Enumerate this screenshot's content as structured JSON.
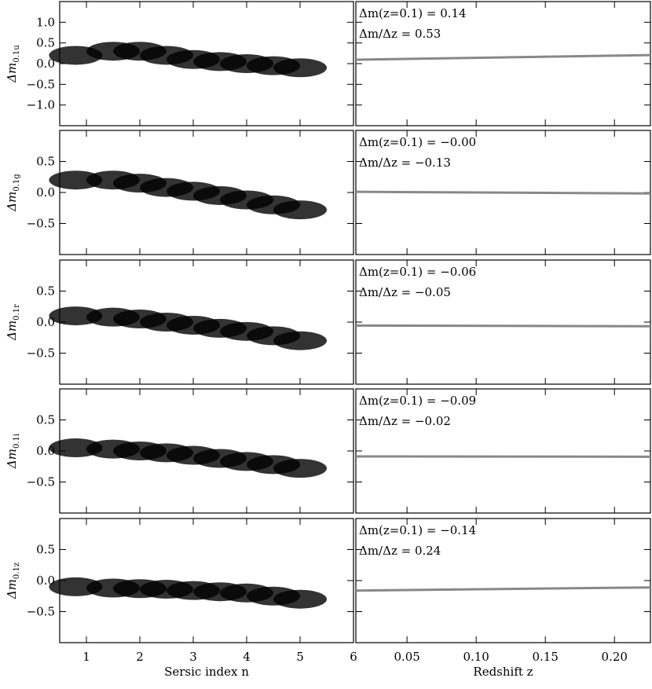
{
  "chart_data": [
    {
      "type": "scatter",
      "ylabel": "Δm",
      "ylabel_sub": "0.1u",
      "xlim": [
        0.5,
        6
      ],
      "xticks": [
        1,
        2,
        3,
        4,
        5,
        6
      ],
      "ylim": [
        -1.5,
        1.5
      ],
      "yticks": [
        {
          "value": -1,
          "label": "−1.0"
        },
        {
          "value": -0.5,
          "label": "−0.5"
        },
        {
          "value": 0,
          "label": "0.0"
        },
        {
          "value": 0.5,
          "label": "0.5"
        },
        {
          "value": 1,
          "label": "1.0"
        }
      ],
      "series": [
        {
          "color": "#000000",
          "x": [
            0.8,
            1.5,
            2,
            2.5,
            3,
            3.5,
            4,
            4.5,
            5
          ],
          "values": [
            0.2,
            0.3,
            0.3,
            0.2,
            0.1,
            0.05,
            0.0,
            -0.05,
            -0.1
          ]
        }
      ]
    },
    {
      "type": "line",
      "annotations": [
        "Δm(z=0.1) = 0.14",
        "Δm/Δz = 0.53"
      ],
      "xlim": [
        0.013,
        0.226
      ],
      "xticks": [
        0.05,
        {
          "value": 0.1,
          "label": "0.10"
        },
        0.15,
        {
          "value": 0.2,
          "label": "0.20"
        }
      ],
      "ylim": [
        -1.5,
        1.5
      ],
      "yticks": [
        -1,
        -0.5,
        0,
        0.5,
        1
      ],
      "series": [
        {
          "color": "#888888",
          "x": [
            0.013,
            0.226
          ],
          "values": [
            0.094,
            0.207
          ]
        }
      ]
    },
    {
      "type": "scatter",
      "ylabel": "Δm",
      "ylabel_sub": "0.1g",
      "xlim": [
        0.5,
        6
      ],
      "xticks": [
        1,
        2,
        3,
        4,
        5,
        6
      ],
      "ylim": [
        -1,
        1
      ],
      "yticks": [
        {
          "value": -0.5,
          "label": "−0.5"
        },
        {
          "value": 0,
          "label": "0.0"
        },
        {
          "value": 0.5,
          "label": "0.5"
        }
      ],
      "series": [
        {
          "color": "#000000",
          "x": [
            0.8,
            1.5,
            2,
            2.5,
            3,
            3.5,
            4,
            4.5,
            5
          ],
          "values": [
            0.2,
            0.2,
            0.15,
            0.08,
            0.02,
            -0.05,
            -0.12,
            -0.2,
            -0.28
          ]
        }
      ]
    },
    {
      "type": "line",
      "annotations": [
        "Δm(z=0.1) = −0.00",
        "Δm/Δz = −0.13"
      ],
      "xlim": [
        0.013,
        0.226
      ],
      "xticks": [
        0.05,
        {
          "value": 0.1,
          "label": "0.10"
        },
        0.15,
        {
          "value": 0.2,
          "label": "0.20"
        }
      ],
      "ylim": [
        -1,
        1
      ],
      "yticks": [
        -0.5,
        0,
        0.5
      ],
      "series": [
        {
          "color": "#888888",
          "x": [
            0.013,
            0.226
          ],
          "values": [
            0.011,
            -0.016
          ]
        }
      ]
    },
    {
      "type": "scatter",
      "ylabel": "Δm",
      "ylabel_sub": "0.1r",
      "xlim": [
        0.5,
        6
      ],
      "xticks": [
        1,
        2,
        3,
        4,
        5,
        6
      ],
      "ylim": [
        -1,
        1
      ],
      "yticks": [
        {
          "value": -0.5,
          "label": "−0.5"
        },
        {
          "value": 0,
          "label": "0.0"
        },
        {
          "value": 0.5,
          "label": "0.5"
        }
      ],
      "series": [
        {
          "color": "#000000",
          "x": [
            0.8,
            1.5,
            2,
            2.5,
            3,
            3.5,
            4,
            4.5,
            5
          ],
          "values": [
            0.1,
            0.08,
            0.05,
            0.0,
            -0.05,
            -0.1,
            -0.15,
            -0.22,
            -0.3
          ]
        }
      ]
    },
    {
      "type": "line",
      "annotations": [
        "Δm(z=0.1) = −0.06",
        "Δm/Δz = −0.05"
      ],
      "xlim": [
        0.013,
        0.226
      ],
      "xticks": [
        0.05,
        {
          "value": 0.1,
          "label": "0.10"
        },
        0.15,
        {
          "value": 0.2,
          "label": "0.20"
        }
      ],
      "ylim": [
        -1,
        1
      ],
      "yticks": [
        -0.5,
        0,
        0.5
      ],
      "series": [
        {
          "color": "#888888",
          "x": [
            0.013,
            0.226
          ],
          "values": [
            -0.056,
            -0.066
          ]
        }
      ]
    },
    {
      "type": "scatter",
      "ylabel": "Δm",
      "ylabel_sub": "0.1i",
      "xlim": [
        0.5,
        6
      ],
      "xticks": [
        1,
        2,
        3,
        4,
        5,
        6
      ],
      "ylim": [
        -1,
        1
      ],
      "yticks": [
        {
          "value": -0.5,
          "label": "−0.5"
        },
        {
          "value": 0,
          "label": "0.0"
        },
        {
          "value": 0.5,
          "label": "0.5"
        }
      ],
      "series": [
        {
          "color": "#000000",
          "x": [
            0.8,
            1.5,
            2,
            2.5,
            3,
            3.5,
            4,
            4.5,
            5
          ],
          "values": [
            0.05,
            0.03,
            0.0,
            -0.03,
            -0.07,
            -0.12,
            -0.17,
            -0.22,
            -0.28
          ]
        }
      ]
    },
    {
      "type": "line",
      "annotations": [
        "Δm(z=0.1) = −0.09",
        "Δm/Δz = −0.02"
      ],
      "xlim": [
        0.013,
        0.226
      ],
      "xticks": [
        0.05,
        {
          "value": 0.1,
          "label": "0.10"
        },
        0.15,
        {
          "value": 0.2,
          "label": "0.20"
        }
      ],
      "ylim": [
        -1,
        1
      ],
      "yticks": [
        -0.5,
        0,
        0.5
      ],
      "series": [
        {
          "color": "#888888",
          "x": [
            0.013,
            0.226
          ],
          "values": [
            -0.088,
            -0.093
          ]
        }
      ]
    },
    {
      "type": "scatter",
      "ylabel": "Δm",
      "ylabel_sub": "0.1z",
      "xlabel": "Sersic index n",
      "xlim": [
        0.5,
        6
      ],
      "xticks": [
        1,
        2,
        3,
        4,
        5,
        6
      ],
      "ylim": [
        -1,
        1
      ],
      "yticks": [
        {
          "value": -0.5,
          "label": "−0.5"
        },
        {
          "value": 0,
          "label": "0.0"
        },
        {
          "value": 0.5,
          "label": "0.5"
        }
      ],
      "series": [
        {
          "color": "#000000",
          "x": [
            0.8,
            1.5,
            2,
            2.5,
            3,
            3.5,
            4,
            4.5,
            5
          ],
          "values": [
            -0.1,
            -0.12,
            -0.13,
            -0.14,
            -0.16,
            -0.18,
            -0.2,
            -0.25,
            -0.3
          ]
        }
      ]
    },
    {
      "type": "line",
      "annotations": [
        "Δm(z=0.1) = −0.14",
        "Δm/Δz = 0.24"
      ],
      "xlabel": "Redshift z",
      "xlim": [
        0.013,
        0.226
      ],
      "xticks": [
        0.05,
        {
          "value": 0.1,
          "label": "0.10"
        },
        0.15,
        {
          "value": 0.2,
          "label": "0.20"
        }
      ],
      "ylim": [
        -1,
        1
      ],
      "yticks": [
        -0.5,
        0,
        0.5
      ],
      "series": [
        {
          "color": "#888888",
          "x": [
            0.013,
            0.226
          ],
          "values": [
            -0.161,
            -0.11
          ]
        }
      ]
    }
  ]
}
